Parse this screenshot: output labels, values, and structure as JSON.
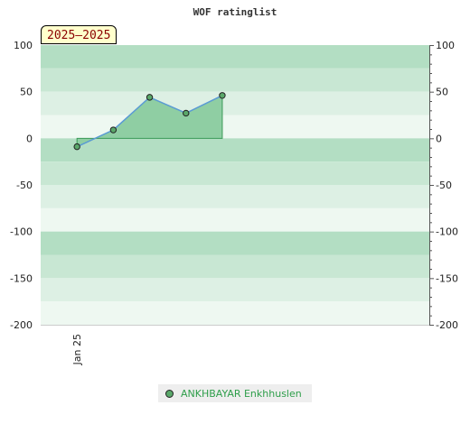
{
  "chart_data": {
    "type": "line",
    "title": "WOF ratinglist",
    "badge": "2025–2025",
    "x": [
      1,
      2,
      3,
      4,
      5
    ],
    "series": [
      {
        "name": "ANKHBAYAR Enkhhuslen",
        "values": [
          -9,
          9,
          44,
          27,
          46
        ]
      }
    ],
    "x_tick_labels": [
      {
        "x": 1,
        "label": "Jan 25"
      }
    ],
    "xlim": [
      0.0,
      10.7
    ],
    "ylim": [
      -200,
      100
    ],
    "yticks": [
      100,
      50,
      0,
      -50,
      -100,
      -150,
      -200
    ],
    "grid": false,
    "legend_position": "bottom-center",
    "colors": {
      "band_dark": "#b3dec3",
      "band_mid": "#c8e7d3",
      "band_light": "#ddf0e4",
      "band_lightest": "#eef8f1",
      "area_fill": "#8fcea3",
      "line": "#5b9bd5",
      "marker": "#5aa86a",
      "zero_line": "#3a9a57"
    }
  }
}
